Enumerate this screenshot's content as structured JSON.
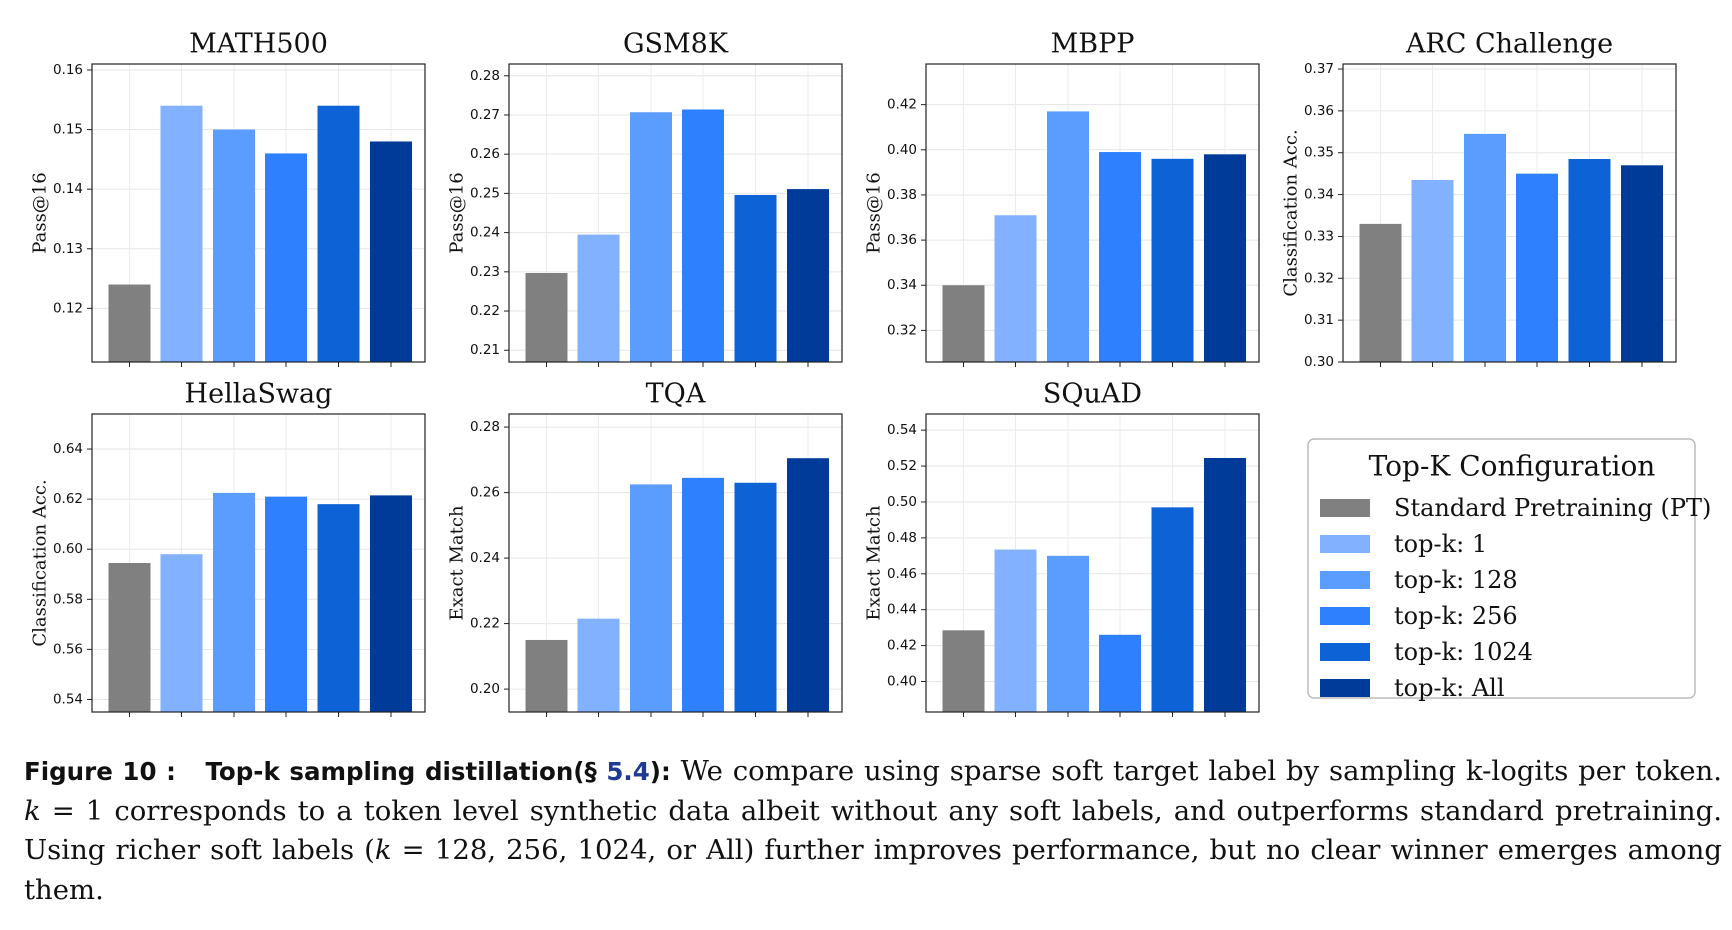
{
  "chart_data": [
    {
      "type": "bar",
      "title": "MATH500",
      "ylabel": "Pass@16",
      "ylim": [
        0.111,
        0.161
      ],
      "yticks": [
        "0.12",
        "0.13",
        "0.14",
        "0.15",
        "0.16"
      ],
      "values": [
        0.124,
        0.154,
        0.15,
        0.146,
        0.154,
        0.148
      ]
    },
    {
      "type": "bar",
      "title": "GSM8K",
      "ylabel": "Pass@16",
      "ylim": [
        0.207,
        0.283
      ],
      "yticks": [
        "0.21",
        "0.22",
        "0.23",
        "0.24",
        "0.25",
        "0.26",
        "0.27",
        "0.28"
      ],
      "values": [
        0.2297,
        0.2395,
        0.2707,
        0.2714,
        0.2496,
        0.2511
      ]
    },
    {
      "type": "bar",
      "title": "MBPP",
      "ylabel": "Pass@16",
      "ylim": [
        0.306,
        0.438
      ],
      "yticks": [
        "0.32",
        "0.34",
        "0.36",
        "0.38",
        "0.40",
        "0.42"
      ],
      "values": [
        0.34,
        0.371,
        0.417,
        0.399,
        0.396,
        0.398
      ]
    },
    {
      "type": "bar",
      "title": "ARC Challenge",
      "ylabel": "Classification Acc.",
      "ylim": [
        0.3,
        0.3712
      ],
      "yticks": [
        "0.30",
        "0.31",
        "0.32",
        "0.33",
        "0.34",
        "0.35",
        "0.36",
        "0.37"
      ],
      "values": [
        0.333,
        0.3435,
        0.3545,
        0.345,
        0.3485,
        0.347
      ]
    },
    {
      "type": "bar",
      "title": "HellaSwag",
      "ylabel": "Classification Acc.",
      "ylim": [
        0.535,
        0.654
      ],
      "yticks": [
        "0.54",
        "0.56",
        "0.58",
        "0.60",
        "0.62",
        "0.64"
      ],
      "values": [
        0.5945,
        0.598,
        0.6225,
        0.621,
        0.618,
        0.6215
      ]
    },
    {
      "type": "bar",
      "title": "TQA",
      "ylabel": "Exact Match",
      "ylim": [
        0.193,
        0.284
      ],
      "yticks": [
        "0.20",
        "0.22",
        "0.24",
        "0.26",
        "0.28"
      ],
      "values": [
        0.215,
        0.2215,
        0.2625,
        0.2645,
        0.263,
        0.2705
      ]
    },
    {
      "type": "bar",
      "title": "SQuAD",
      "ylabel": "Exact Match",
      "ylim": [
        0.383,
        0.549
      ],
      "yticks": [
        "0.40",
        "0.42",
        "0.44",
        "0.46",
        "0.48",
        "0.50",
        "0.52",
        "0.54"
      ],
      "values": [
        0.4285,
        0.4735,
        0.47,
        0.426,
        0.497,
        0.5245
      ]
    }
  ],
  "legend": {
    "title": "Top-K Configuration",
    "entries": [
      {
        "label": "Standard Pretraining (PT)",
        "color": "#808080"
      },
      {
        "label": "top-k: 1",
        "color": "#82B1FF"
      },
      {
        "label": "top-k: 128",
        "color": "#5B9CFF"
      },
      {
        "label": "top-k: 256",
        "color": "#2F80FF"
      },
      {
        "label": "top-k: 1024",
        "color": "#0D63D6"
      },
      {
        "label": "top-k: All",
        "color": "#003B9A"
      }
    ]
  },
  "caption": {
    "label": "Figure 10 :",
    "bold_title": "Top-k sampling distillation(§ ",
    "ref": "5.4",
    "bold_close": "):",
    "text1": " We compare using sparse soft target label by sampling k-logits per token. ",
    "math1": "k",
    "text2": " = 1 corresponds to a token level synthetic data albeit without any soft labels, and outperforms standard pretraining. Using richer soft labels (",
    "math2": "k",
    "text3": " = 128, 256, 1024, or All) further improves performance, but no clear winner emerges among them."
  }
}
